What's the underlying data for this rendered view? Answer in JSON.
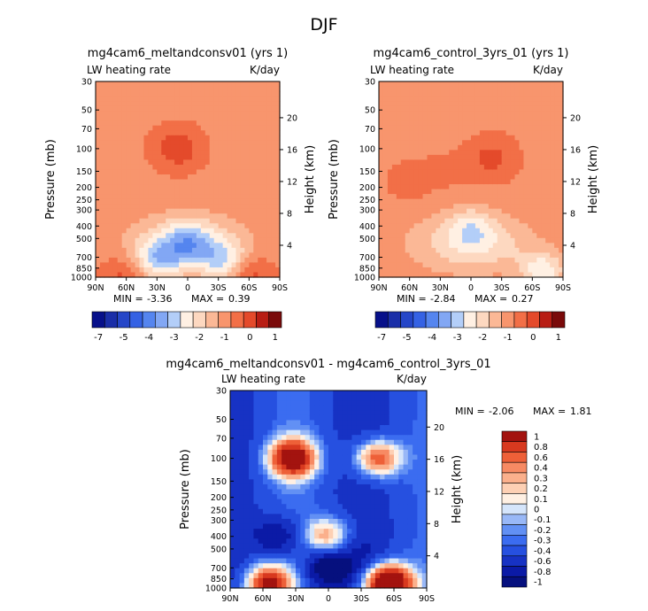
{
  "figure_title": "DJF",
  "colors": {
    "neg": [
      "#0a0f8c",
      "#1d38c8",
      "#2f5be6",
      "#4f7df0",
      "#7aa2f3",
      "#a6c4f6",
      "#d0e2fa"
    ],
    "pos": [
      "#fff0e3",
      "#fdd8c0",
      "#fbb896",
      "#f8956d",
      "#f26f47",
      "#e44a2b",
      "#c7281a",
      "#931111"
    ]
  },
  "chart_data": [
    {
      "type": "heatmap",
      "title": "mg4cam6_meltandconsv01 (yrs 1)",
      "left_label": "LW heating rate",
      "right_label": "K/day",
      "ylabel": "Pressure (mb)",
      "y2label": "Height (km)",
      "pressure_ticks": [
        "30",
        "50",
        "70",
        "100",
        "150",
        "200",
        "250",
        "300",
        "400",
        "500",
        "700",
        "850",
        "1000"
      ],
      "pressure_values": [
        30,
        50,
        70,
        100,
        150,
        200,
        250,
        300,
        400,
        500,
        700,
        850,
        1000
      ],
      "height_ticks": [
        "20",
        "16",
        "12",
        "8",
        "4"
      ],
      "height_values": [
        20,
        16,
        12,
        8,
        4
      ],
      "x_ticks": [
        "90N",
        "60N",
        "30N",
        "0",
        "30S",
        "60S",
        "90S"
      ],
      "x_values": [
        90,
        60,
        30,
        0,
        -30,
        -60,
        -90
      ],
      "xlim": [
        90,
        -90
      ],
      "ylim": [
        30,
        1000
      ],
      "stats": {
        "min_label": "MIN =",
        "min": "-3.36",
        "max_label": "MAX =",
        "max": "0.39"
      },
      "colorbar_labels": [
        "-7",
        "-5",
        "-4",
        "-3",
        "-2",
        "-1",
        "0",
        "1"
      ],
      "colorbar_levels": [
        -7,
        -6,
        -5,
        -4.5,
        -4,
        -3.5,
        -3,
        -2.5,
        -2,
        -1.5,
        -1,
        -0.5,
        0,
        0.5,
        1
      ],
      "features": [
        {
          "lat": 10,
          "p": 100,
          "value": 0.4
        },
        {
          "lat": -60,
          "p": 950,
          "value": 0.2
        },
        {
          "lat": 60,
          "p": 950,
          "value": 0.1
        },
        {
          "lat": 0,
          "p": 520,
          "value": -3.2
        },
        {
          "lat": 30,
          "p": 750,
          "value": -3.0
        },
        {
          "lat": -35,
          "p": 760,
          "value": -2.8
        },
        {
          "lat": 0,
          "p": 650,
          "value": -2.4
        }
      ]
    },
    {
      "type": "heatmap",
      "title": "mg4cam6_control_3yrs_01 (yrs 1)",
      "left_label": "LW heating rate",
      "right_label": "K/day",
      "ylabel": "Pressure (mb)",
      "y2label": "Height (km)",
      "pressure_ticks": [
        "30",
        "50",
        "70",
        "100",
        "150",
        "200",
        "250",
        "300",
        "400",
        "500",
        "700",
        "850",
        "1000"
      ],
      "pressure_values": [
        30,
        50,
        70,
        100,
        150,
        200,
        250,
        300,
        400,
        500,
        700,
        850,
        1000
      ],
      "height_ticks": [
        "20",
        "16",
        "12",
        "8",
        "4"
      ],
      "height_values": [
        20,
        16,
        12,
        8,
        4
      ],
      "x_ticks": [
        "90N",
        "60N",
        "30N",
        "0",
        "30S",
        "60S",
        "90S"
      ],
      "x_values": [
        90,
        60,
        30,
        0,
        -30,
        -60,
        -90
      ],
      "xlim": [
        90,
        -90
      ],
      "ylim": [
        30,
        1000
      ],
      "stats": {
        "min_label": "MIN =",
        "min": "-2.84",
        "max_label": "MAX =",
        "max": "0.27"
      },
      "colorbar_labels": [
        "-7",
        "-5",
        "-4",
        "-3",
        "-2",
        "-1",
        "0",
        "1"
      ],
      "colorbar_levels": [
        -7,
        -6,
        -5,
        -4.5,
        -4,
        -3.5,
        -3,
        -2.5,
        -2,
        -1.5,
        -1,
        -0.5,
        0,
        0.5,
        1
      ],
      "features": [
        {
          "lat": 60,
          "p": 180,
          "value": -0.3
        },
        {
          "lat": 25,
          "p": 150,
          "value": -0.4
        },
        {
          "lat": -20,
          "p": 120,
          "value": 0.2
        },
        {
          "lat": 0,
          "p": 400,
          "value": -2.6
        },
        {
          "lat": -70,
          "p": 900,
          "value": -2.4
        },
        {
          "lat": -10,
          "p": 650,
          "value": -1.9
        },
        {
          "lat": 20,
          "p": 600,
          "value": -1.8
        }
      ]
    },
    {
      "type": "heatmap",
      "title": "mg4cam6_meltandconsv01 - mg4cam6_control_3yrs_01",
      "left_label": "LW heating rate",
      "right_label": "K/day",
      "ylabel": "Pressure (mb)",
      "y2label": "Height (km)",
      "pressure_ticks": [
        "30",
        "50",
        "70",
        "100",
        "150",
        "200",
        "250",
        "300",
        "400",
        "500",
        "700",
        "850",
        "1000"
      ],
      "pressure_values": [
        30,
        50,
        70,
        100,
        150,
        200,
        250,
        300,
        400,
        500,
        700,
        850,
        1000
      ],
      "height_ticks": [
        "20",
        "16",
        "12",
        "8",
        "4"
      ],
      "height_values": [
        20,
        16,
        12,
        8,
        4
      ],
      "x_ticks": [
        "90N",
        "60N",
        "30N",
        "0",
        "30S",
        "60S",
        "90S"
      ],
      "x_values": [
        90,
        60,
        30,
        0,
        -30,
        -60,
        -90
      ],
      "xlim": [
        90,
        -90
      ],
      "ylim": [
        30,
        1000
      ],
      "stats": {
        "min_label": "MIN =",
        "min": "-2.06",
        "max_label": "MAX =",
        "max": "1.81"
      },
      "colorbar_labels": [
        "1",
        "0.8",
        "0.6",
        "0.4",
        "0.3",
        "0.2",
        "0.1",
        "0",
        "-0.1",
        "-0.2",
        "-0.3",
        "-0.4",
        "-0.6",
        "-0.8",
        "-1"
      ],
      "colorbar_levels": [
        1,
        0.8,
        0.6,
        0.4,
        0.3,
        0.2,
        0.1,
        0,
        -0.1,
        -0.2,
        -0.3,
        -0.4,
        -0.6,
        -0.8,
        -1
      ],
      "features": [
        {
          "lat": 33,
          "p": 100,
          "value": 1.2
        },
        {
          "lat": -45,
          "p": 100,
          "value": 0.5
        },
        {
          "lat": -55,
          "p": 930,
          "value": 1.5
        },
        {
          "lat": 55,
          "p": 930,
          "value": 0.9
        },
        {
          "lat": 0,
          "p": 400,
          "value": 0.3
        },
        {
          "lat": 0,
          "p": 700,
          "value": -1.4
        },
        {
          "lat": 45,
          "p": 400,
          "value": -1.0
        },
        {
          "lat": -30,
          "p": 550,
          "value": -0.9
        }
      ]
    }
  ]
}
